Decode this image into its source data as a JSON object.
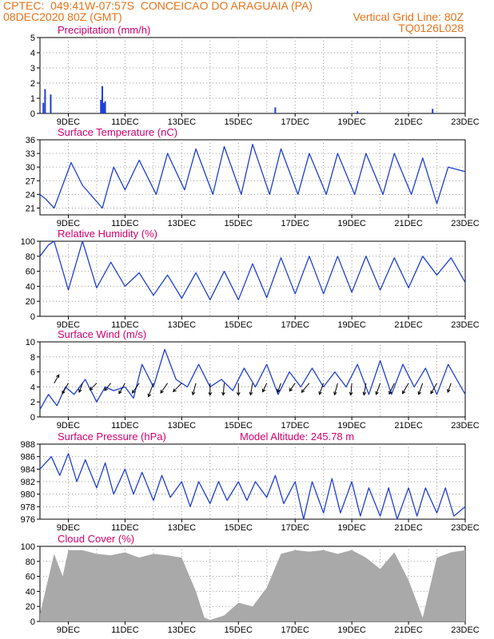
{
  "header": {
    "source": "CPTEC:",
    "coords": "049:41W-07:57S",
    "location": "CONCEICAO DO ARAGUAIA (PA)",
    "date": "08DEC2020 80Z (GMT)",
    "grid_note": "Vertical Grid Line: 80Z",
    "model_code": "TQ0126L028"
  },
  "colors": {
    "header": "#e8731a",
    "title": "#d5006e",
    "series": "#1f3fd6",
    "cloud": "#a9a9a9",
    "grid": "#9a9a9a"
  },
  "x_ticks": [
    "9DEC",
    "11DEC",
    "13DEC",
    "15DEC",
    "17DEC",
    "19DEC",
    "21DEC",
    "23DEC"
  ],
  "chart_data": [
    {
      "type": "bar",
      "title": "Precipitation (mm/h)",
      "ylim": [
        0,
        5
      ],
      "yticks": [
        0,
        1,
        2,
        3,
        4,
        5
      ],
      "x_unit": "days since 08DEC 00Z",
      "series": [
        {
          "bars": [
            [
              0.12,
              0.7
            ],
            [
              0.18,
              1.6
            ],
            [
              0.38,
              1.25
            ],
            [
              2.15,
              0.9
            ],
            [
              2.2,
              1.8
            ],
            [
              2.25,
              0.7
            ],
            [
              2.3,
              0.8
            ],
            [
              8.3,
              0.4
            ],
            [
              11.2,
              0.15
            ],
            [
              13.85,
              0.3
            ]
          ]
        }
      ]
    },
    {
      "type": "line",
      "title": "Surface Temperature (nC)",
      "ylim": [
        19.5,
        36
      ],
      "yticks": [
        21,
        24,
        27,
        30,
        33,
        36
      ],
      "series": [
        {
          "x": [
            0.0,
            0.2,
            0.5,
            1.1,
            1.5,
            2.2,
            2.6,
            3.0,
            3.5,
            4.1,
            4.5,
            5.1,
            5.5,
            6.1,
            6.5,
            7.1,
            7.5,
            8.1,
            8.5,
            9.1,
            9.5,
            10.1,
            10.5,
            11.1,
            11.5,
            12.1,
            12.5,
            13.1,
            13.5,
            14.0,
            14.4,
            15.0
          ],
          "y": [
            24,
            23,
            21,
            31,
            26,
            21,
            30,
            25,
            31.5,
            24,
            33,
            25,
            34,
            24,
            34.5,
            24,
            35,
            24,
            34,
            24,
            33,
            24,
            33,
            24,
            33,
            24,
            33,
            24,
            32,
            22,
            30,
            29
          ]
        }
      ]
    },
    {
      "type": "line",
      "title": "Relative Humidity (%)",
      "ylim": [
        0,
        100
      ],
      "yticks": [
        0,
        20,
        40,
        60,
        80,
        100
      ],
      "series": [
        {
          "x": [
            0.0,
            0.3,
            0.5,
            1.0,
            1.5,
            2.0,
            2.5,
            3.0,
            3.5,
            4.0,
            4.5,
            5.0,
            5.5,
            6.0,
            6.5,
            7.0,
            7.5,
            8.0,
            8.5,
            9.0,
            9.5,
            10.0,
            10.5,
            11.0,
            11.5,
            12.0,
            12.5,
            13.0,
            13.5,
            14.0,
            14.5,
            15.0
          ],
          "y": [
            80,
            95,
            100,
            35,
            100,
            38,
            72,
            40,
            58,
            28,
            55,
            24,
            58,
            22,
            60,
            22,
            70,
            25,
            78,
            30,
            80,
            30,
            80,
            32,
            80,
            35,
            78,
            38,
            80,
            55,
            78,
            45
          ]
        }
      ]
    },
    {
      "type": "line",
      "title": "Surface Wind (m/s)",
      "ylim": [
        0,
        10
      ],
      "yticks": [
        0,
        2,
        4,
        6,
        8,
        10
      ],
      "series": [
        {
          "x": [
            0.0,
            0.3,
            0.6,
            0.9,
            1.2,
            1.6,
            2.0,
            2.3,
            2.6,
            3.0,
            3.3,
            3.6,
            4.0,
            4.4,
            4.8,
            5.2,
            5.6,
            6.0,
            6.4,
            6.8,
            7.2,
            7.6,
            8.0,
            8.4,
            8.8,
            9.2,
            9.6,
            10.0,
            10.4,
            10.8,
            11.2,
            11.6,
            12.0,
            12.4,
            12.8,
            13.2,
            13.6,
            14.0,
            14.4,
            15.0
          ],
          "y": [
            1,
            3,
            1.5,
            4,
            3,
            5,
            2,
            4,
            3.5,
            4,
            2.5,
            7,
            4,
            9,
            5,
            4,
            7,
            4,
            5,
            3.5,
            6.5,
            4,
            7,
            3,
            6,
            4,
            6.5,
            4,
            6,
            4,
            7,
            3,
            7.5,
            3,
            7,
            4,
            6.5,
            3,
            7,
            3
          ]
        }
      ]
    },
    {
      "type": "line",
      "title": "Surface Pressure (hPa)",
      "subtitle": "Model Altitude: 245.78 m",
      "ylim": [
        976,
        988
      ],
      "yticks": [
        976,
        978,
        980,
        982,
        984,
        986,
        988
      ],
      "series": [
        {
          "x": [
            0.0,
            0.4,
            0.7,
            1.0,
            1.3,
            1.6,
            2.0,
            2.3,
            2.6,
            3.0,
            3.3,
            3.6,
            4.0,
            4.3,
            4.6,
            5.0,
            5.3,
            5.6,
            6.0,
            6.3,
            6.6,
            7.0,
            7.3,
            7.6,
            8.0,
            8.3,
            8.6,
            9.0,
            9.3,
            9.6,
            10.0,
            10.3,
            10.6,
            11.0,
            11.3,
            11.6,
            12.0,
            12.3,
            12.6,
            13.0,
            13.3,
            13.6,
            14.0,
            14.3,
            14.6,
            15.0
          ],
          "y": [
            984,
            986,
            983,
            986.5,
            982,
            985.5,
            981,
            985,
            980,
            984,
            980,
            983.5,
            979,
            983,
            979.5,
            982,
            978,
            982,
            978.5,
            982,
            979,
            982,
            979,
            982,
            979.5,
            983,
            978.5,
            982,
            976,
            982,
            977,
            982.5,
            977,
            982,
            976.5,
            981,
            976.5,
            981,
            976,
            981,
            976.5,
            981,
            977,
            981,
            976.5,
            978
          ]
        }
      ]
    },
    {
      "type": "area",
      "title": "Cloud Cover (%)",
      "ylim": [
        0,
        100
      ],
      "yticks": [
        0,
        20,
        40,
        60,
        80,
        100
      ],
      "series": [
        {
          "x": [
            0.0,
            0.5,
            0.8,
            1.0,
            1.5,
            2.0,
            2.5,
            3.0,
            3.5,
            4.0,
            4.5,
            5.0,
            5.5,
            5.8,
            6.0,
            6.5,
            7.0,
            7.5,
            8.0,
            8.5,
            9.0,
            9.5,
            10.0,
            10.5,
            11.0,
            11.5,
            12.0,
            12.5,
            13.0,
            13.5,
            14.0,
            14.5,
            15.0
          ],
          "y": [
            10,
            90,
            60,
            95,
            95,
            90,
            88,
            92,
            85,
            90,
            88,
            85,
            40,
            5,
            2,
            8,
            25,
            20,
            45,
            90,
            95,
            93,
            95,
            90,
            95,
            85,
            70,
            92,
            55,
            5,
            85,
            92,
            95
          ]
        }
      ]
    }
  ],
  "wind_arrows": {
    "note": "direction in degrees pointing (screen), speed in m/s",
    "x": [
      0.5,
      1.0,
      1.5,
      2.0,
      2.5,
      3.0,
      3.5,
      4.0,
      4.5,
      5.0,
      5.5,
      6.0,
      6.5,
      7.0,
      7.5,
      8.0,
      8.5,
      9.0,
      9.5,
      10.0,
      10.5,
      11.0,
      11.5,
      12.0,
      12.5,
      13.0,
      13.5,
      14.0,
      14.5
    ],
    "dir": [
      30,
      210,
      200,
      225,
      220,
      210,
      215,
      200,
      215,
      225,
      195,
      180,
      185,
      180,
      190,
      205,
      200,
      215,
      220,
      200,
      195,
      185,
      190,
      200,
      205,
      210,
      200,
      210,
      200
    ],
    "speed": [
      2,
      3,
      2,
      2,
      2,
      3,
      3,
      4,
      3,
      3,
      3,
      3,
      3,
      3,
      3,
      2,
      2,
      2,
      3,
      3,
      3,
      3,
      3,
      3,
      3,
      3,
      3,
      3,
      2
    ]
  }
}
